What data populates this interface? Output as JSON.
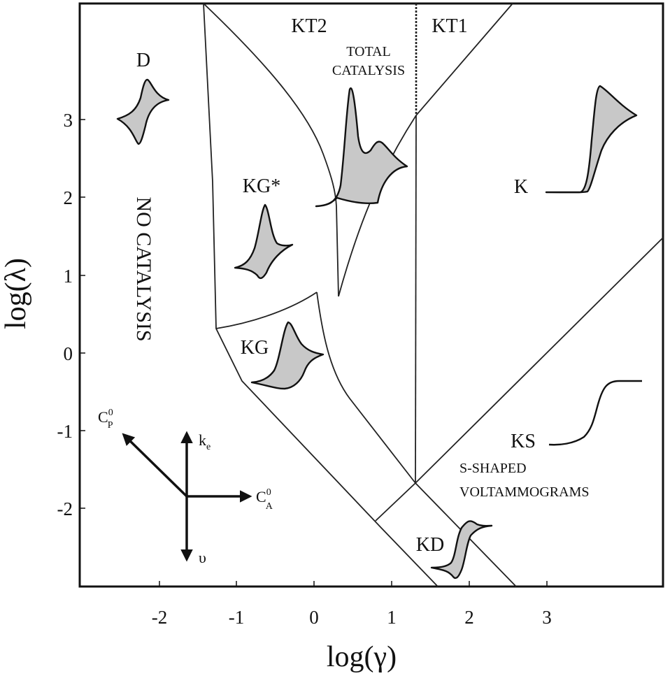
{
  "axes": {
    "x_title": "log(γ)",
    "y_title": "log(λ)",
    "x_ticks": [
      "-2",
      "-1",
      "0",
      "1",
      "2",
      "3"
    ],
    "y_ticks": [
      "3",
      "2",
      "1",
      "0",
      "-1",
      "-2"
    ]
  },
  "zones": {
    "kt2": "KT2",
    "kt1": "KT1",
    "total_catalysis_line1": "TOTAL",
    "total_catalysis_line2": "CATALYSIS",
    "d": "D",
    "no_catalysis": "NO CATALYSIS",
    "kg_star": "KG*",
    "k": "K",
    "kg": "KG",
    "ks": "KS",
    "s_shaped_line1": "S-SHAPED",
    "s_shaped_line2": "VOLTAMMOGRAMS",
    "kd": "KD"
  },
  "vectors": {
    "cp": "C",
    "cp_sup": "0",
    "cp_sub": "P",
    "ke": "k",
    "ke_sub": "e",
    "ca": "C",
    "ca_sup": "0",
    "ca_sub": "A",
    "upsilon": "υ"
  },
  "colors": {
    "line": "#222222",
    "wave_fill": "#c8c8c8"
  }
}
